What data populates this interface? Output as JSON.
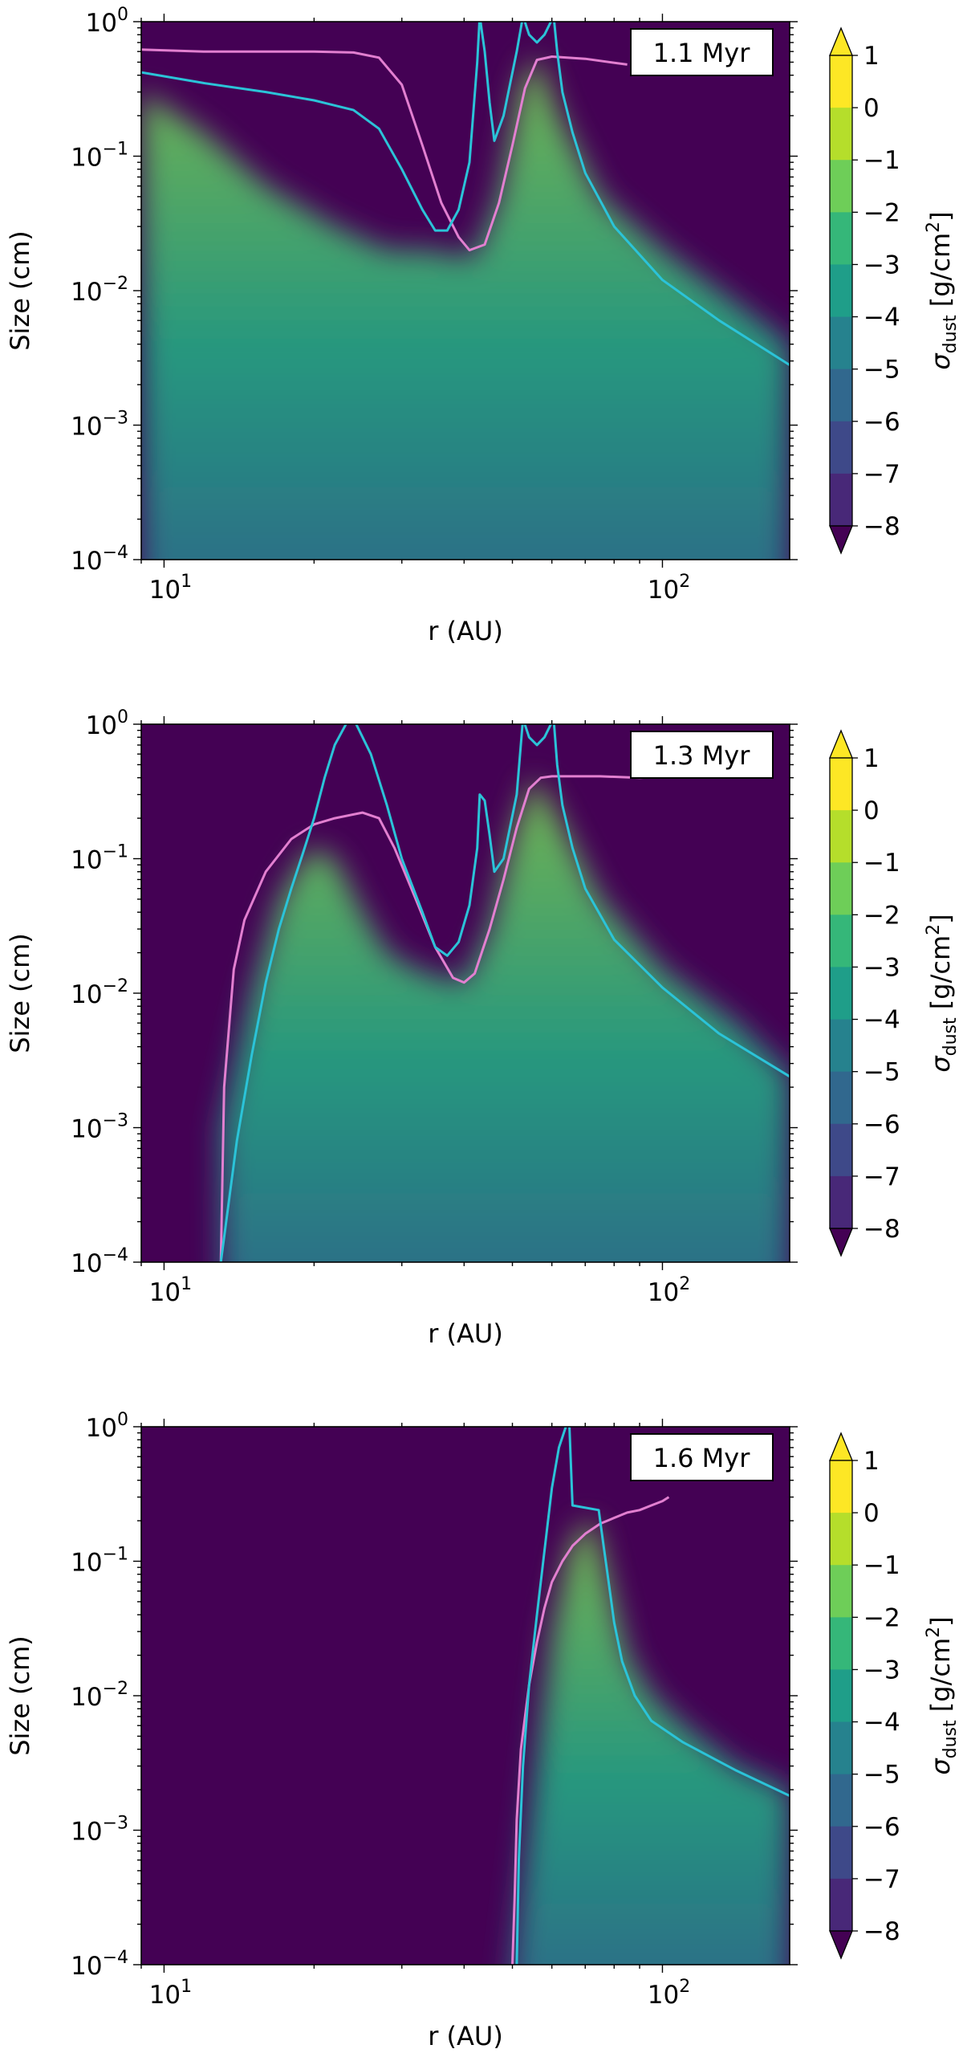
{
  "chart_data": [
    {
      "type": "heatmap",
      "panel_label": "1.1 Myr",
      "xlabel": "r (AU)",
      "ylabel": "Size (cm)",
      "xscale": "log",
      "yscale": "log",
      "xlim": [
        9,
        180
      ],
      "ylim": [
        0.0001,
        1
      ],
      "x_ticks": [
        {
          "value": 10,
          "base": "10",
          "exp": "1"
        },
        {
          "value": 100,
          "base": "10",
          "exp": "2"
        }
      ],
      "y_ticks": [
        {
          "value": 0.0001,
          "base": "10",
          "exp": "−4"
        },
        {
          "value": 0.001,
          "base": "10",
          "exp": "−3"
        },
        {
          "value": 0.01,
          "base": "10",
          "exp": "−2"
        },
        {
          "value": 0.1,
          "base": "10",
          "exp": "−1"
        },
        {
          "value": 1,
          "base": "10",
          "exp": "0"
        }
      ],
      "colorbar": {
        "label": "σ_dust [g/cm²]",
        "label_main": "σ",
        "label_sub": "dust",
        "label_rest": " [g/cm",
        "label_sup": "2",
        "label_end": "]",
        "ticks": [
          "1",
          "0",
          "−1",
          "−2",
          "−3",
          "−4",
          "−5",
          "−6",
          "−7",
          "−8"
        ],
        "vmin": -8,
        "vmax": 1
      },
      "ridges": [
        {
          "x": [
            9,
            12,
            16,
            22,
            28,
            34,
            39,
            42,
            47,
            52,
            56,
            62,
            75,
            100,
            140,
            180
          ],
          "y": [
            0.3,
            0.15,
            0.06,
            0.03,
            0.02,
            0.02,
            0.018,
            0.018,
            0.05,
            0.35,
            0.55,
            0.2,
            0.05,
            0.02,
            0.008,
            0.004
          ]
        }
      ],
      "series": [
        {
          "color": "#e27fd0",
          "x": [
            9,
            12,
            16,
            20,
            24,
            27,
            30,
            33,
            36,
            39,
            41,
            44,
            47,
            50,
            53,
            56,
            60,
            70,
            85
          ],
          "y": [
            0.62,
            0.6,
            0.6,
            0.6,
            0.59,
            0.54,
            0.34,
            0.12,
            0.045,
            0.025,
            0.02,
            0.022,
            0.045,
            0.12,
            0.32,
            0.52,
            0.55,
            0.53,
            0.48
          ]
        },
        {
          "color": "#2bc3d8",
          "x": [
            9,
            12,
            16,
            20,
            24,
            27,
            30,
            33,
            35,
            37,
            39,
            41,
            42.5,
            43,
            44,
            45,
            46,
            48,
            51,
            52.5,
            54,
            56,
            58,
            60.5,
            61.5,
            63,
            66,
            70,
            80,
            100,
            130,
            180
          ],
          "y": [
            0.42,
            0.35,
            0.3,
            0.26,
            0.22,
            0.16,
            0.08,
            0.04,
            0.028,
            0.028,
            0.04,
            0.09,
            0.5,
            1.1,
            0.6,
            0.25,
            0.13,
            0.2,
            0.6,
            1.1,
            0.8,
            0.7,
            0.8,
            1.1,
            0.6,
            0.3,
            0.15,
            0.075,
            0.03,
            0.012,
            0.006,
            0.0028
          ]
        }
      ]
    },
    {
      "type": "heatmap",
      "panel_label": "1.3 Myr",
      "xlabel": "r (AU)",
      "ylabel": "Size (cm)",
      "xscale": "log",
      "yscale": "log",
      "xlim": [
        9,
        180
      ],
      "ylim": [
        0.0001,
        1
      ],
      "x_ticks": [
        {
          "value": 10,
          "base": "10",
          "exp": "1"
        },
        {
          "value": 100,
          "base": "10",
          "exp": "2"
        }
      ],
      "y_ticks": [
        {
          "value": 0.0001,
          "base": "10",
          "exp": "−4"
        },
        {
          "value": 0.001,
          "base": "10",
          "exp": "−3"
        },
        {
          "value": 0.01,
          "base": "10",
          "exp": "−2"
        },
        {
          "value": 0.1,
          "base": "10",
          "exp": "−1"
        },
        {
          "value": 1,
          "base": "10",
          "exp": "0"
        }
      ],
      "colorbar": {
        "label": "σ_dust [g/cm²]",
        "label_main": "σ",
        "label_sub": "dust",
        "label_rest": " [g/cm",
        "label_sup": "2",
        "label_end": "]",
        "ticks": [
          "1",
          "0",
          "−1",
          "−2",
          "−3",
          "−4",
          "−5",
          "−6",
          "−7",
          "−8"
        ],
        "vmin": -8,
        "vmax": 1
      },
      "ridges": [
        {
          "x": [
            13,
            15,
            17,
            19,
            20,
            22,
            25,
            28,
            32,
            36,
            40,
            45,
            50,
            55,
            60,
            75,
            100,
            140,
            180
          ],
          "y": [
            0.001,
            0.01,
            0.05,
            0.1,
            0.12,
            0.1,
            0.04,
            0.02,
            0.015,
            0.013,
            0.012,
            0.03,
            0.15,
            0.4,
            0.25,
            0.05,
            0.015,
            0.006,
            0.0025
          ]
        }
      ],
      "series": [
        {
          "color": "#e27fd0",
          "x": [
            13,
            13.2,
            13.8,
            14.5,
            16,
            18,
            20,
            22,
            25,
            27,
            29,
            32,
            35,
            38,
            40,
            42,
            45,
            48,
            51,
            54,
            57,
            60,
            65,
            75,
            90,
            103
          ],
          "y": [
            0.0001,
            0.002,
            0.015,
            0.035,
            0.08,
            0.14,
            0.18,
            0.2,
            0.22,
            0.2,
            0.12,
            0.05,
            0.022,
            0.013,
            0.012,
            0.014,
            0.03,
            0.07,
            0.17,
            0.33,
            0.4,
            0.41,
            0.41,
            0.41,
            0.4,
            0.41
          ]
        },
        {
          "color": "#2bc3d8",
          "x": [
            13,
            14,
            15,
            16,
            17,
            18,
            19,
            20,
            21,
            22,
            23,
            23.5,
            24,
            26,
            28,
            30,
            33,
            35,
            37,
            39,
            41,
            42.5,
            43,
            44,
            45,
            46,
            48,
            51,
            52.5,
            54,
            56,
            58,
            60.5,
            61.5,
            63,
            66,
            70,
            80,
            100,
            130,
            180
          ],
          "y": [
            0.0001,
            0.0008,
            0.0035,
            0.012,
            0.03,
            0.06,
            0.11,
            0.2,
            0.4,
            0.7,
            0.95,
            1.1,
            1.1,
            0.6,
            0.25,
            0.1,
            0.04,
            0.022,
            0.019,
            0.024,
            0.045,
            0.12,
            0.3,
            0.27,
            0.15,
            0.08,
            0.1,
            0.3,
            1.1,
            0.8,
            0.7,
            0.8,
            1.1,
            0.5,
            0.25,
            0.12,
            0.06,
            0.025,
            0.011,
            0.005,
            0.0024
          ]
        }
      ]
    },
    {
      "type": "heatmap",
      "panel_label": "1.6 Myr",
      "xlabel": "r (AU)",
      "ylabel": "Size (cm)",
      "xscale": "log",
      "yscale": "log",
      "xlim": [
        9,
        180
      ],
      "ylim": [
        0.0001,
        1
      ],
      "x_ticks": [
        {
          "value": 10,
          "base": "10",
          "exp": "1"
        },
        {
          "value": 100,
          "base": "10",
          "exp": "2"
        }
      ],
      "y_ticks": [
        {
          "value": 0.0001,
          "base": "10",
          "exp": "−4"
        },
        {
          "value": 0.001,
          "base": "10",
          "exp": "−3"
        },
        {
          "value": 0.01,
          "base": "10",
          "exp": "−2"
        },
        {
          "value": 0.1,
          "base": "10",
          "exp": "−1"
        },
        {
          "value": 1,
          "base": "10",
          "exp": "0"
        }
      ],
      "colorbar": {
        "label": "σ_dust [g/cm²]",
        "label_main": "σ",
        "label_sub": "dust",
        "label_rest": " [g/cm",
        "label_sup": "2",
        "label_end": "]",
        "ticks": [
          "1",
          "0",
          "−1",
          "−2",
          "−3",
          "−4",
          "−5",
          "−6",
          "−7",
          "−8"
        ],
        "vmin": -8,
        "vmax": 1
      },
      "ridges": [
        {
          "x": [
            50,
            55,
            60,
            65,
            70,
            73,
            78,
            85,
            95,
            110,
            140,
            180
          ],
          "y": [
            0.0001,
            0.002,
            0.03,
            0.12,
            0.2,
            0.18,
            0.07,
            0.02,
            0.01,
            0.006,
            0.003,
            0.002
          ]
        }
      ],
      "series": [
        {
          "color": "#e27fd0",
          "x": [
            50,
            50.5,
            51,
            52,
            54,
            56,
            58,
            60,
            63,
            66,
            70,
            75,
            80,
            85,
            90,
            95,
            100,
            103
          ],
          "y": [
            0.0001,
            0.0003,
            0.0012,
            0.004,
            0.012,
            0.025,
            0.045,
            0.07,
            0.1,
            0.13,
            0.16,
            0.19,
            0.21,
            0.23,
            0.24,
            0.26,
            0.28,
            0.3
          ]
        },
        {
          "color": "#2bc3d8",
          "x": [
            51,
            51.5,
            52.5,
            54,
            56,
            58,
            60,
            62,
            64,
            65,
            66,
            74.5,
            76,
            78,
            80,
            83,
            88,
            95,
            110,
            140,
            180
          ],
          "y": [
            0.0001,
            0.0006,
            0.003,
            0.012,
            0.04,
            0.12,
            0.35,
            0.7,
            1.0,
            1.1,
            0.26,
            0.24,
            0.14,
            0.07,
            0.035,
            0.018,
            0.01,
            0.0065,
            0.0045,
            0.0028,
            0.0018
          ]
        }
      ]
    }
  ]
}
